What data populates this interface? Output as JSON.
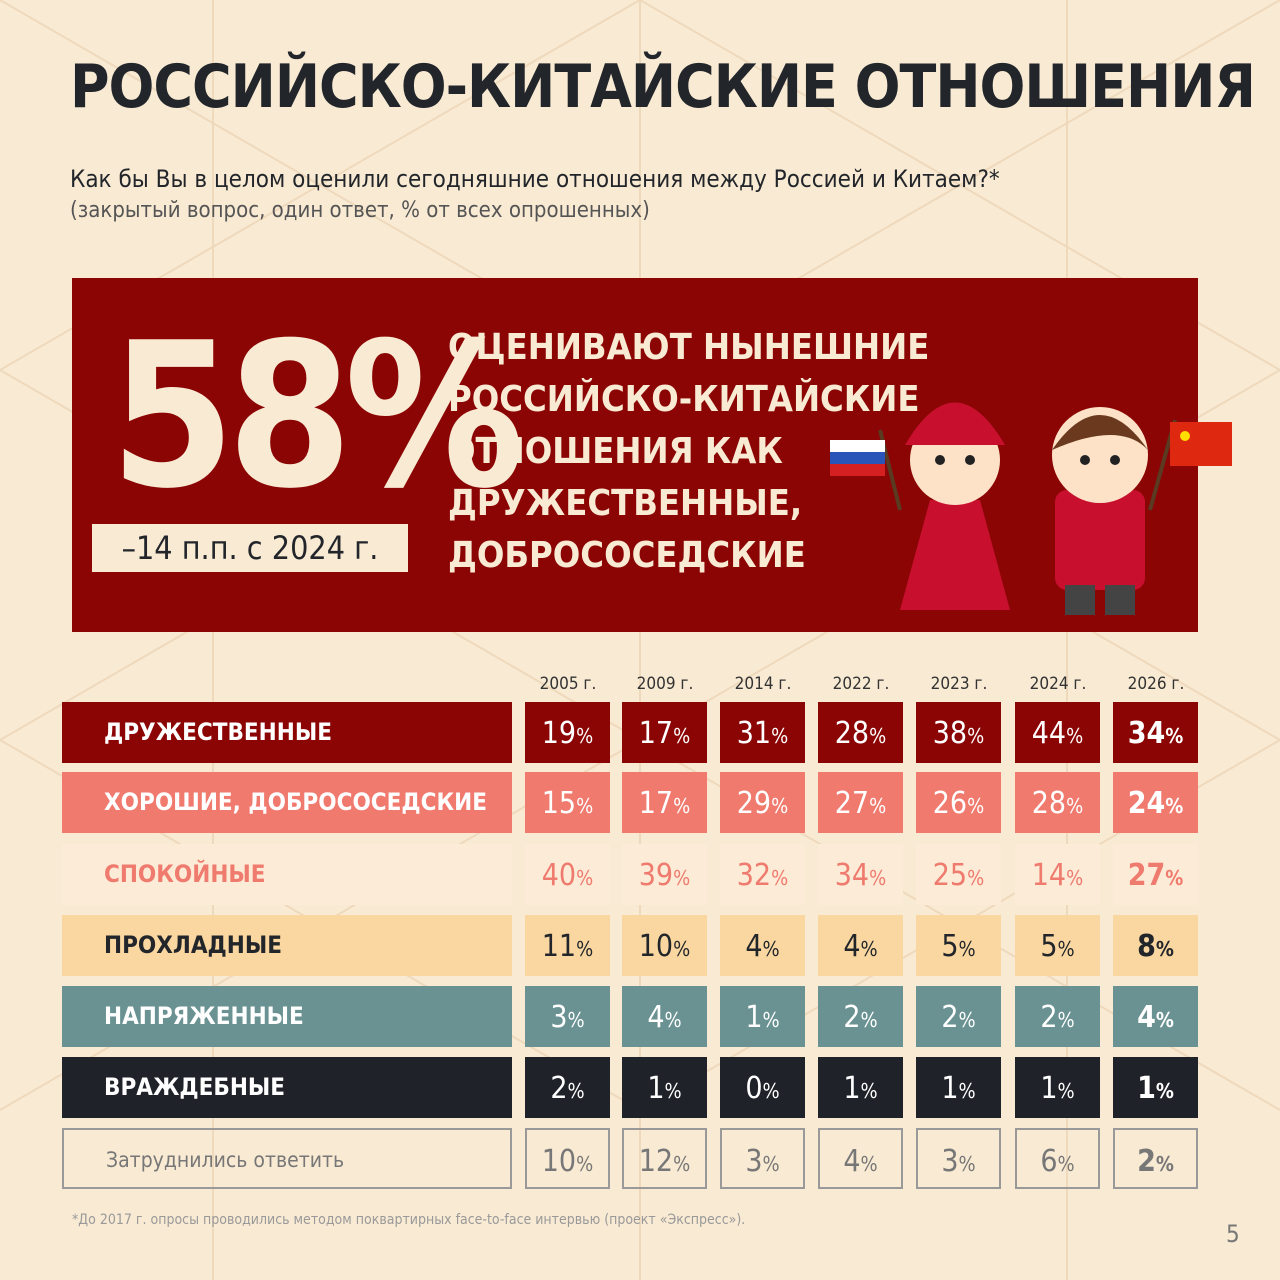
{
  "header": {
    "title": "РОССИЙСКО-КИТАЙСКИЕ ОТНОШЕНИЯ",
    "question": "Как бы Вы в целом оценили сегодняшние отношения между Россией и Китаем?*",
    "note": "(закрытый вопрос, один ответ, % от всех опрошенных)"
  },
  "highlight": {
    "value": "58%",
    "change": "–14 п.п. с 2024 г.",
    "lines": [
      "ОЦЕНИВАЮТ НЫНЕШНИЕ",
      "РОССИЙСКО-КИТАЙСКИЕ",
      "ОТНОШЕНИЯ КАК",
      "ДРУЖЕСТВЕННЫЕ,",
      "ДОБРОСОСЕДСКИЕ"
    ]
  },
  "table": {
    "years": [
      "2005 г.",
      "2009 г.",
      "2014 г.",
      "2022 г.",
      "2023 г.",
      "2024 г.",
      "2026 г."
    ],
    "rows": [
      {
        "label": "ДРУЖЕСТВЕННЫЕ",
        "values": [
          "19%",
          "17%",
          "31%",
          "28%",
          "38%",
          "44%",
          "34%"
        ]
      },
      {
        "label": "ХОРОШИЕ, ДОБРОСОСЕДСКИЕ",
        "values": [
          "15%",
          "17%",
          "29%",
          "27%",
          "26%",
          "28%",
          "24%"
        ]
      },
      {
        "label": "СПОКОЙНЫЕ",
        "values": [
          "40%",
          "39%",
          "32%",
          "34%",
          "25%",
          "14%",
          "27%"
        ]
      },
      {
        "label": "ПРОХЛАДНЫЕ",
        "values": [
          "11%",
          "10%",
          "4%",
          "4%",
          "5%",
          "5%",
          "8%"
        ]
      },
      {
        "label": "НАПРЯЖЕННЫЕ",
        "values": [
          "3%",
          "4%",
          "1%",
          "2%",
          "2%",
          "2%",
          "4%"
        ]
      },
      {
        "label": "ВРАЖДЕБНЫЕ",
        "values": [
          "2%",
          "1%",
          "0%",
          "1%",
          "1%",
          "1%",
          "1%"
        ]
      },
      {
        "label": "Затруднились ответить",
        "values": [
          "10%",
          "12%",
          "3%",
          "4%",
          "3%",
          "6%",
          "2%"
        ]
      }
    ]
  },
  "footnote": "*До 2017 г. опросы проводились методом поквартирных face-to-face интервью (проект «Экспресс»).",
  "page_number": "5"
}
